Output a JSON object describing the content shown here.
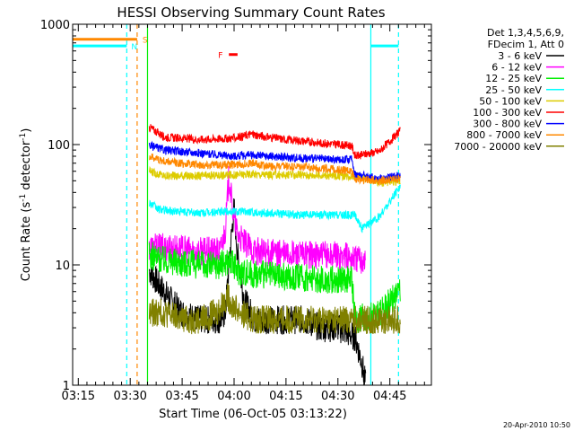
{
  "chart_data": {
    "type": "line",
    "title": "HESSI Observing Summary Count Rates",
    "xlabel": "Start Time (06-Oct-05 03:13:22)",
    "ylabel_main": "Count Rate (s",
    "ylabel_sup1": "-1",
    "ylabel_mid": " detector",
    "ylabel_sup2": "-1",
    "ylabel_end": ")",
    "yscale": "log",
    "ylim": [
      1,
      1000
    ],
    "xlim_minutes": [
      193.37,
      297
    ],
    "x_ticks": [
      {
        "m": 195,
        "label": "03:15"
      },
      {
        "m": 210,
        "label": "03:30"
      },
      {
        "m": 225,
        "label": "03:45"
      },
      {
        "m": 240,
        "label": "04:00"
      },
      {
        "m": 255,
        "label": "04:15"
      },
      {
        "m": 270,
        "label": "04:30"
      },
      {
        "m": 285,
        "label": "04:45"
      }
    ],
    "y_ticks": [
      {
        "v": 1,
        "label": "1"
      },
      {
        "v": 10,
        "label": "10"
      },
      {
        "v": 100,
        "label": "100"
      },
      {
        "v": 1000,
        "label": "1000"
      }
    ],
    "legend": {
      "placement": "right",
      "header": [
        "Det 1,3,4,5,6,9,",
        "FDecim 1, Att 0"
      ]
    },
    "series": [
      {
        "name": "3 - 6 keV",
        "color": "#000000",
        "t": [
          215.5,
          218,
          222,
          225,
          230,
          233,
          236,
          237.5,
          238.5,
          240,
          241,
          243,
          246,
          250,
          255,
          260,
          265,
          270,
          275,
          277,
          278
        ],
        "v": [
          9,
          7,
          5,
          4,
          3.5,
          3.5,
          3.5,
          4,
          10,
          30,
          12,
          5,
          3.5,
          3.5,
          3.5,
          3.5,
          3,
          3,
          2.5,
          1.5,
          1
        ]
      },
      {
        "name": "6 - 12 keV",
        "color": "#ff00ff",
        "t": [
          215.5,
          220,
          230,
          236,
          237.5,
          238.5,
          239.5,
          241,
          243,
          246,
          250,
          260,
          270,
          274,
          278
        ],
        "v": [
          14,
          14,
          13,
          13,
          20,
          55,
          30,
          18,
          15,
          13,
          12.5,
          12,
          12,
          11.5,
          11
        ]
      },
      {
        "name": "12 - 25 keV",
        "color": "#00ee00",
        "t": [
          215.5,
          220,
          230,
          236,
          238.5,
          241,
          245,
          255,
          265,
          274,
          275,
          282,
          288
        ],
        "v": [
          12,
          11,
          10,
          10,
          11,
          9,
          8.5,
          8,
          7.5,
          7.5,
          3.5,
          4,
          6
        ]
      },
      {
        "name": "25 - 50 keV",
        "color": "#00ffff",
        "t": [
          215.5,
          218,
          222,
          230,
          240,
          250,
          260,
          270,
          275,
          277,
          282,
          288
        ],
        "v": [
          33,
          29,
          28,
          27,
          28,
          27,
          26,
          26,
          26,
          20,
          25,
          45
        ]
      },
      {
        "name": "50 - 100 keV",
        "color": "#ddcc00",
        "t": [
          215.5,
          220,
          230,
          240,
          245,
          250,
          260,
          270,
          275,
          282,
          288
        ],
        "v": [
          60,
          55,
          55,
          56,
          57,
          56,
          56,
          55,
          55,
          48,
          50
        ]
      },
      {
        "name": "100 - 300 keV",
        "color": "#ff0000",
        "t": [
          215.5,
          220,
          230,
          240,
          245,
          250,
          255,
          260,
          265,
          270,
          274,
          275,
          282,
          288
        ],
        "v": [
          140,
          115,
          110,
          113,
          122,
          115,
          110,
          107,
          103,
          100,
          98,
          80,
          88,
          130
        ]
      },
      {
        "name": "300 - 800 keV",
        "color": "#0000ff",
        "t": [
          215.5,
          220,
          230,
          240,
          245,
          250,
          260,
          270,
          274,
          275,
          282,
          288
        ],
        "v": [
          98,
          90,
          85,
          80,
          82,
          80,
          77,
          75,
          75,
          57,
          52,
          55
        ]
      },
      {
        "name": "800 - 7000 keV",
        "color": "#ff8800",
        "t": [
          215.5,
          220,
          230,
          240,
          245,
          250,
          260,
          270,
          274,
          275,
          282,
          288
        ],
        "v": [
          80,
          72,
          68,
          68,
          70,
          66,
          65,
          62,
          60,
          52,
          50,
          52
        ]
      },
      {
        "name": "7000 - 20000 keV",
        "color": "#808000",
        "t": [
          215.5,
          220,
          225,
          230,
          235,
          238,
          240,
          242,
          246,
          250,
          255,
          260,
          265,
          270,
          275,
          282,
          288
        ],
        "v": [
          4,
          4,
          3.5,
          3.5,
          4,
          5.5,
          4.5,
          4,
          3.5,
          3.5,
          3.5,
          3.5,
          3.5,
          3.5,
          3.5,
          3.5,
          3.5
        ]
      }
    ],
    "overlays": {
      "saa_bar": {
        "t0": 193.37,
        "t1": 212,
        "v": 750,
        "color": "#ff8800",
        "label": "S"
      },
      "night_bar": {
        "t0": 193.37,
        "t1": 209,
        "v": 660,
        "color": "#00ffff",
        "label": "N"
      },
      "night_bar2": {
        "t0": 279.5,
        "t1": 287.5,
        "v": 660,
        "color": "#00ffff"
      },
      "flare_bar": {
        "t0": 238.5,
        "t1": 241,
        "v": 560,
        "color": "#ff0000",
        "label": "F"
      },
      "vlines": [
        {
          "t": 209,
          "color": "#00ffff",
          "dash": true
        },
        {
          "t": 212,
          "color": "#ff8800",
          "dash": true
        },
        {
          "t": 215,
          "color": "#00ee00",
          "dash": false
        },
        {
          "t": 279.5,
          "color": "#00ffff",
          "dash": false
        },
        {
          "t": 287.5,
          "color": "#00ffff",
          "dash": true
        }
      ]
    }
  },
  "footer": {
    "timestamp": "20-Apr-2010 10:50"
  }
}
